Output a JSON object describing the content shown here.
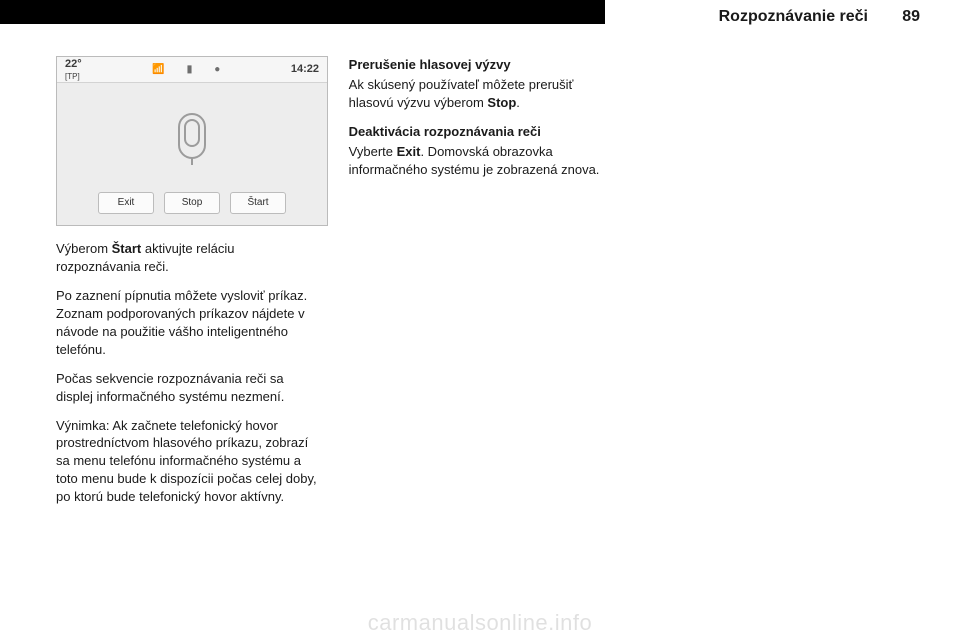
{
  "header": {
    "title": "Rozpoznávanie reči",
    "page_number": "89"
  },
  "screenshot": {
    "temperature": "22°",
    "tp_label": "[TP]",
    "clock": "14:22",
    "icons": {
      "signal": "📶",
      "battery": "▮",
      "rec": "●"
    },
    "buttons": {
      "exit": "Exit",
      "stop": "Stop",
      "start": "Štart"
    },
    "mic_name": "microphone-icon"
  },
  "col1": {
    "p1_pre": "Výberom ",
    "p1_bold": "Štart",
    "p1_post": " aktivujte reláciu rozpoznávania reči.",
    "p2": "Po zaznení pípnutia môžete vysloviť príkaz. Zoznam podporovaných príkazov nájdete v návode na použitie vášho inteligentného telefónu.",
    "p3": "Počas sekvencie rozpoznávania reči sa displej informačného systému nezmení.",
    "p4": "Výnimka: Ak začnete telefonický hovor prostredníctvom hlasového príkazu, zobrazí sa menu telefónu informačného systému a toto menu bude k dispozícii počas celej doby, po ktorú bude telefonický hovor aktívny."
  },
  "col2": {
    "h1": "Prerušenie hlasovej výzvy",
    "p1_pre": "Ak skúsený používateľ môžete prerušiť hlasovú výzvu výberom ",
    "p1_bold": "Stop",
    "p1_post": ".",
    "h2": "Deaktivácia rozpoznávania reči",
    "p2_pre": "Vyberte ",
    "p2_bold": "Exit",
    "p2_post": ". Domovská obrazovka informačného systému je zobrazená znova."
  },
  "watermark": "carmanualsonline.info"
}
